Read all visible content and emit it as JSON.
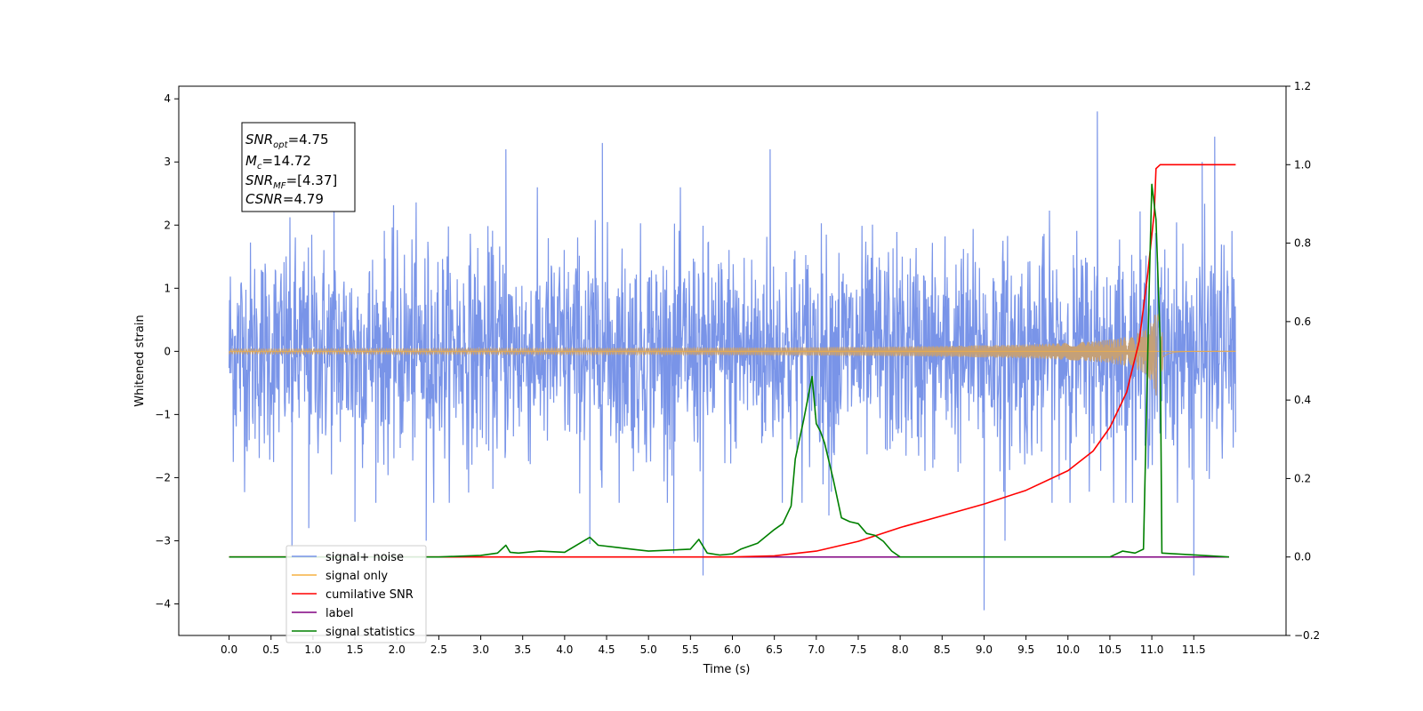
{
  "figure": {
    "xlabel": "Time (s)",
    "ylabel": "Whitened strain"
  },
  "annotation_box": {
    "lines": [
      {
        "main": "SNR",
        "sub": "opt",
        "rest": "=4.75"
      },
      {
        "main": "M",
        "sub": "c",
        "rest": "=14.72"
      },
      {
        "main": "SNR",
        "sub": "MF",
        "rest": "=[4.37]"
      },
      {
        "main": "CSNR",
        "sub": "",
        "rest": "=4.79"
      }
    ]
  },
  "colors": {
    "signal_noise": "#7994e8",
    "signal_only": "#f5b041",
    "signal_only_inspiral": "#c4a078",
    "cumulative_snr": "#ff0000",
    "label": "#800080",
    "signal_statistics": "#008000"
  },
  "legend": {
    "placement": "lower-left",
    "items": [
      {
        "label": "signal+ noise",
        "color": "#7994e8"
      },
      {
        "label": "signal only",
        "color": "#f5b041"
      },
      {
        "label": "cumilative SNR",
        "color": "#ff0000"
      },
      {
        "label": "label",
        "color": "#800080"
      },
      {
        "label": "signal statistics",
        "color": "#008000"
      }
    ]
  },
  "chart_data": {
    "type": "line",
    "grid": false,
    "x_ticks": [
      "0.0",
      "0.5",
      "1.0",
      "1.5",
      "2.0",
      "2.5",
      "3.0",
      "3.5",
      "4.0",
      "4.5",
      "5.0",
      "5.5",
      "6.0",
      "6.5",
      "7.0",
      "7.5",
      "8.0",
      "8.5",
      "9.0",
      "9.5",
      "10.0",
      "10.5",
      "11.0",
      "11.5"
    ],
    "xlim": [
      -0.6,
      12.6
    ],
    "left_axis": {
      "ylim": [
        -4.5,
        4.2
      ],
      "ticks": [
        "−4",
        "−3",
        "−2",
        "−1",
        "0",
        "1",
        "2",
        "3",
        "4"
      ]
    },
    "right_axis": {
      "ylim": [
        -0.2,
        1.2
      ],
      "ticks": [
        "−0.2",
        "0.0",
        "0.2",
        "0.4",
        "0.6",
        "0.8",
        "1.0",
        "1.2"
      ]
    },
    "series": [
      {
        "name": "signal+ noise",
        "axis": "left",
        "description_values": {
          "x_range": [
            0.0,
            12.0
          ],
          "typical_amplitude": 1.0,
          "envelope_high": 2.6,
          "envelope_low": -2.4
        },
        "spikes": [
          [
            0.75,
            -3.1
          ],
          [
            0.95,
            -2.8
          ],
          [
            1.25,
            2.9
          ],
          [
            1.5,
            -2.7
          ],
          [
            2.35,
            -3.0
          ],
          [
            3.3,
            3.2
          ],
          [
            4.3,
            -3.05
          ],
          [
            4.45,
            3.3
          ],
          [
            5.3,
            -3.2
          ],
          [
            5.65,
            -3.55
          ],
          [
            6.45,
            3.2
          ],
          [
            7.15,
            -2.6
          ],
          [
            9.0,
            -4.1
          ],
          [
            9.25,
            -3.0
          ],
          [
            10.35,
            3.8
          ],
          [
            11.5,
            -3.55
          ],
          [
            11.6,
            3.0
          ],
          [
            11.75,
            3.4
          ]
        ]
      },
      {
        "name": "signal only",
        "axis": "left",
        "description_values": {
          "x_range": [
            0.0,
            12.0
          ],
          "peak_time": 11.05,
          "peak_amplitude": 0.75
        }
      },
      {
        "name": "cumilative SNR",
        "axis": "right",
        "x": [
          0.0,
          6.0,
          6.5,
          7.0,
          7.5,
          8.0,
          8.5,
          9.0,
          9.5,
          10.0,
          10.3,
          10.5,
          10.7,
          10.85,
          10.95,
          11.03,
          11.05,
          11.1,
          12.0
        ],
        "y": [
          0.0,
          0.0,
          0.003,
          0.015,
          0.04,
          0.075,
          0.105,
          0.135,
          0.17,
          0.22,
          0.27,
          0.33,
          0.42,
          0.55,
          0.72,
          0.88,
          0.99,
          1.0,
          1.0
        ]
      },
      {
        "name": "label",
        "axis": "right",
        "x": [
          0.0,
          11.92
        ],
        "y": [
          0.0,
          0.0
        ]
      },
      {
        "name": "signal statistics",
        "axis": "right",
        "x": [
          0.0,
          2.5,
          3.0,
          3.2,
          3.3,
          3.35,
          3.45,
          3.7,
          4.0,
          4.3,
          4.4,
          4.6,
          4.8,
          5.0,
          5.3,
          5.5,
          5.6,
          5.7,
          5.85,
          6.0,
          6.1,
          6.3,
          6.5,
          6.6,
          6.7,
          6.75,
          6.85,
          6.95,
          7.0,
          7.05,
          7.1,
          7.2,
          7.3,
          7.4,
          7.5,
          7.6,
          7.7,
          7.8,
          7.9,
          8.0,
          8.2,
          9.0,
          10.5,
          10.65,
          10.8,
          10.9,
          10.97,
          11.0,
          11.05,
          11.1,
          11.12,
          11.92
        ],
        "y": [
          0.0,
          0.0,
          0.004,
          0.01,
          0.03,
          0.012,
          0.01,
          0.015,
          0.012,
          0.05,
          0.03,
          0.025,
          0.02,
          0.015,
          0.018,
          0.02,
          0.045,
          0.01,
          0.005,
          0.008,
          0.02,
          0.035,
          0.07,
          0.085,
          0.13,
          0.25,
          0.35,
          0.46,
          0.34,
          0.32,
          0.29,
          0.2,
          0.1,
          0.09,
          0.085,
          0.06,
          0.055,
          0.04,
          0.015,
          0.0,
          0.0,
          0.0,
          0.0,
          0.015,
          0.01,
          0.02,
          0.7,
          0.95,
          0.86,
          0.55,
          0.01,
          0.0
        ]
      }
    ]
  }
}
